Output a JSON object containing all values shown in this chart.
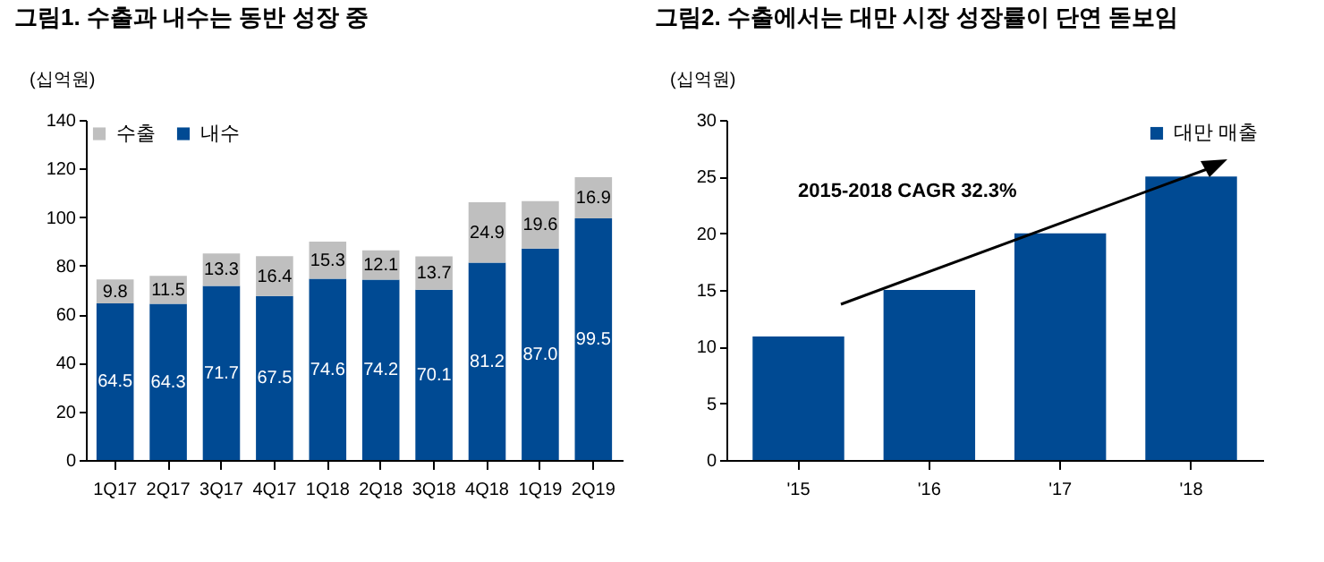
{
  "chart_data": [
    {
      "type": "bar",
      "title": "그림1. 수출과 내수는 동반 성장 중",
      "ylabel": "(십억원)",
      "stacked": true,
      "categories": [
        "1Q17",
        "2Q17",
        "3Q17",
        "4Q17",
        "1Q18",
        "2Q18",
        "3Q18",
        "4Q18",
        "1Q19",
        "2Q19"
      ],
      "series": [
        {
          "name": "내수",
          "color": "#004a93",
          "values": [
            64.5,
            64.3,
            71.7,
            67.5,
            74.6,
            74.2,
            70.1,
            81.2,
            87.0,
            99.5
          ],
          "value_labels": [
            "64.5",
            "64.3",
            "71.7",
            "67.5",
            "74.6",
            "74.2",
            "70.1",
            "81.2",
            "87.0",
            "99.5"
          ]
        },
        {
          "name": "수출",
          "color": "#bfbfbf",
          "values": [
            9.8,
            11.5,
            13.3,
            16.4,
            15.3,
            12.1,
            13.7,
            24.9,
            19.6,
            16.9
          ],
          "value_labels": [
            "9.8",
            "11.5",
            "13.3",
            "16.4",
            "15.3",
            "12.1",
            "13.7",
            "24.9",
            "19.6",
            "16.9"
          ]
        }
      ],
      "ylim": [
        0,
        140
      ],
      "yticks": [
        0,
        20,
        40,
        60,
        80,
        100,
        120,
        140
      ],
      "legend": "top left"
    },
    {
      "type": "bar",
      "title": "그림2. 수출에서는 대만 시장 성장률이 단연 돋보임",
      "ylabel": "(십억원)",
      "categories": [
        "'15",
        "'16",
        "'17",
        "'18"
      ],
      "series": [
        {
          "name": "대만 매출",
          "color": "#004a93",
          "values": [
            10.9,
            15,
            20,
            25
          ]
        }
      ],
      "ylim": [
        0,
        30
      ],
      "yticks": [
        0,
        5,
        10,
        15,
        20,
        25,
        30
      ],
      "annotations": [
        "2015-2018 CAGR 32.3%"
      ],
      "legend": "top right"
    }
  ]
}
